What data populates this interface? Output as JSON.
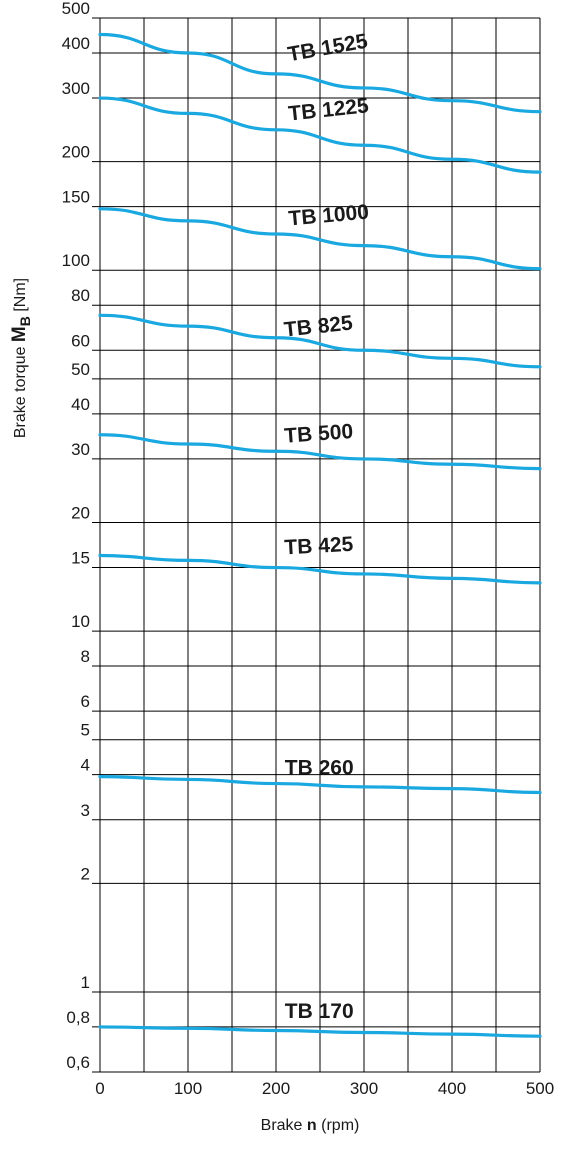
{
  "chart_data": {
    "type": "line",
    "xlabel": {
      "prefix": "Brake ",
      "symbol": "n",
      "unit": " (rpm)"
    },
    "ylabel": {
      "prefix": "Brake torque ",
      "symbol": "M",
      "subscript": "B",
      "unit": " [Nm]"
    },
    "xlim": [
      0,
      500
    ],
    "ylim": [
      0.6,
      500
    ],
    "y_scale": "log",
    "grid": true,
    "x_ticks": [
      {
        "value": 0,
        "label": "0"
      },
      {
        "value": 100,
        "label": "100"
      },
      {
        "value": 200,
        "label": "200"
      },
      {
        "value": 300,
        "label": "300"
      },
      {
        "value": 400,
        "label": "400"
      },
      {
        "value": 500,
        "label": "500"
      }
    ],
    "x_grid": [
      0,
      50,
      100,
      150,
      200,
      250,
      300,
      350,
      400,
      450,
      500
    ],
    "y_ticks": [
      {
        "value": 0.6,
        "label": "0,6"
      },
      {
        "value": 0.8,
        "label": "0,8"
      },
      {
        "value": 1,
        "label": "1"
      },
      {
        "value": 2,
        "label": "2"
      },
      {
        "value": 3,
        "label": "3"
      },
      {
        "value": 4,
        "label": "4"
      },
      {
        "value": 5,
        "label": "5"
      },
      {
        "value": 6,
        "label": "6"
      },
      {
        "value": 8,
        "label": "8"
      },
      {
        "value": 10,
        "label": "10"
      },
      {
        "value": 15,
        "label": "15"
      },
      {
        "value": 20,
        "label": "20"
      },
      {
        "value": 30,
        "label": "30"
      },
      {
        "value": 40,
        "label": "40"
      },
      {
        "value": 50,
        "label": "50"
      },
      {
        "value": 60,
        "label": "60"
      },
      {
        "value": 80,
        "label": "80"
      },
      {
        "value": 100,
        "label": "100"
      },
      {
        "value": 150,
        "label": "150"
      },
      {
        "value": 200,
        "label": "200"
      },
      {
        "value": 300,
        "label": "300"
      },
      {
        "value": 400,
        "label": "400"
      },
      {
        "value": 500,
        "label": "500"
      }
    ],
    "series": [
      {
        "name": "TB 1525",
        "label_x": 215,
        "label_y": 365,
        "label_rotate": -10,
        "x": [
          0,
          100,
          200,
          300,
          400,
          500
        ],
        "y": [
          450,
          400,
          350,
          320,
          295,
          275
        ]
      },
      {
        "name": "TB 1225",
        "label_x": 215,
        "label_y": 250,
        "label_rotate": -6,
        "x": [
          0,
          100,
          200,
          300,
          400,
          500
        ],
        "y": [
          300,
          272,
          245,
          222,
          203,
          187
        ]
      },
      {
        "name": "TB 1000",
        "label_x": 215,
        "label_y": 128,
        "label_rotate": -5,
        "x": [
          0,
          100,
          200,
          300,
          400,
          500
        ],
        "y": [
          148,
          137,
          126,
          117,
          109,
          101
        ]
      },
      {
        "name": "TB 825",
        "label_x": 210,
        "label_y": 63,
        "label_rotate": -6,
        "x": [
          0,
          100,
          200,
          300,
          400,
          500
        ],
        "y": [
          75,
          70,
          65,
          60,
          57,
          54
        ]
      },
      {
        "name": "TB 500",
        "label_x": 210,
        "label_y": 32,
        "label_rotate": -4,
        "x": [
          0,
          100,
          200,
          300,
          400,
          500
        ],
        "y": [
          35,
          33,
          31.5,
          30,
          29,
          28.2
        ]
      },
      {
        "name": "TB 425",
        "label_x": 210,
        "label_y": 15.7,
        "label_rotate": -3,
        "x": [
          0,
          100,
          200,
          300,
          400,
          500
        ],
        "y": [
          16.2,
          15.7,
          15,
          14.4,
          14,
          13.6
        ]
      },
      {
        "name": "TB 260",
        "label_x": 210,
        "label_y": 3.85,
        "label_rotate": 0,
        "x": [
          0,
          100,
          200,
          300,
          400,
          500
        ],
        "y": [
          3.95,
          3.88,
          3.78,
          3.7,
          3.66,
          3.57
        ]
      },
      {
        "name": "TB 170",
        "label_x": 210,
        "label_y": 0.815,
        "label_rotate": 0,
        "x": [
          0,
          100,
          200,
          300,
          400,
          500
        ],
        "y": [
          0.8,
          0.793,
          0.782,
          0.772,
          0.764,
          0.754
        ]
      }
    ],
    "series_color": "#1aa8e0"
  }
}
